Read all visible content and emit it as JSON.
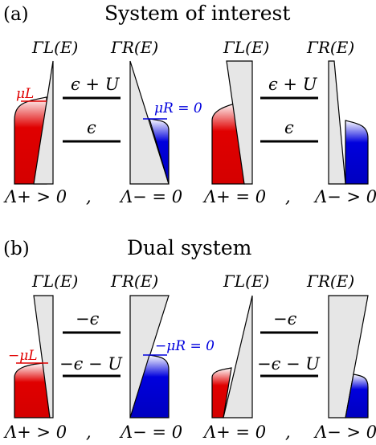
{
  "panel_a": {
    "label": "(a)",
    "title": "System of interest",
    "gamma_L": "ΓL(E)",
    "gamma_R": "ΓR(E)",
    "level_upper": "ϵ + U",
    "level_lower": "ϵ",
    "mu_L": "μL",
    "mu_R": "μR = 0",
    "cond_left_1": "Λ+ > 0",
    "cond_left_2": "Λ− = 0",
    "cond_right_1": "Λ+ = 0",
    "cond_right_2": "Λ− > 0",
    "separator": ","
  },
  "panel_b": {
    "label": "(b)",
    "title": "Dual system",
    "gamma_L": "ΓL(E)",
    "gamma_R": "ΓR(E)",
    "level_upper": "−ϵ",
    "level_lower": "−ϵ − U",
    "mu_L": "−μL",
    "mu_R": "−μR = 0",
    "cond_left_1": "Λ+ > 0",
    "cond_left_2": "Λ− = 0",
    "cond_right_1": "Λ+ = 0",
    "cond_right_2": "Λ− > 0",
    "separator": ","
  },
  "colors": {
    "left_lead": "#e00000",
    "right_lead": "#0000cc",
    "barrier": "#e6e6e6"
  }
}
